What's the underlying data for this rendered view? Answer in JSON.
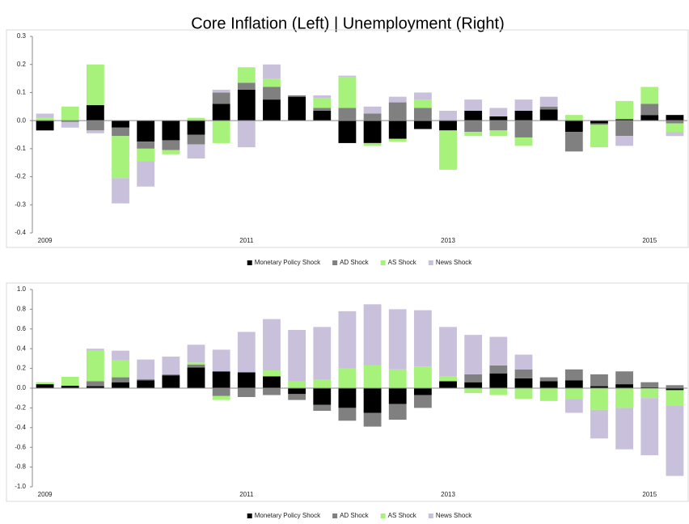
{
  "title": "Core Inflation (Left) | Unemployment (Right)",
  "chart_data": [
    {
      "type": "bar",
      "stacked": true,
      "categories": [
        "2009",
        null,
        null,
        null,
        null,
        null,
        null,
        null,
        "2011",
        null,
        null,
        null,
        null,
        null,
        null,
        null,
        "2013",
        null,
        null,
        null,
        null,
        null,
        null,
        null,
        "2015",
        null
      ],
      "series": [
        {
          "name": "Monetary Policy Shock",
          "color": "#000000",
          "values": [
            -0.035,
            0,
            0.055,
            -0.025,
            -0.075,
            -0.07,
            -0.05,
            0.06,
            0.11,
            0.075,
            0.085,
            0.035,
            -0.08,
            -0.08,
            -0.065,
            -0.03,
            -0.035,
            0.035,
            0.015,
            0.035,
            0.04,
            -0.04,
            -0.01,
            0.005,
            0.02,
            0.02
          ]
        },
        {
          "name": "AD Shock",
          "color": "#808080",
          "values": [
            0,
            -0.005,
            -0.035,
            -0.03,
            -0.025,
            -0.035,
            -0.035,
            0.04,
            0.025,
            0.045,
            0.005,
            0.01,
            0.045,
            0.025,
            0.065,
            0.045,
            0,
            -0.04,
            -0.035,
            -0.06,
            0.01,
            -0.07,
            -0.005,
            -0.055,
            0.04,
            -0.01
          ]
        },
        {
          "name": "AS Shock",
          "color": "#a6f27a",
          "values": [
            0.01,
            0.05,
            0.145,
            -0.15,
            -0.045,
            -0.015,
            0.01,
            -0.08,
            0.055,
            0.03,
            0,
            0.035,
            0.11,
            -0.01,
            -0.01,
            0.03,
            -0.14,
            -0.015,
            -0.02,
            -0.03,
            0,
            0.02,
            -0.08,
            0.065,
            0.06,
            -0.03
          ]
        },
        {
          "name": "News Shock",
          "color": "#c9c0dc",
          "values": [
            0.015,
            -0.02,
            -0.01,
            -0.09,
            -0.09,
            0,
            -0.05,
            0.01,
            -0.095,
            0.05,
            0,
            0.01,
            0.005,
            0.025,
            0.02,
            0.025,
            0.035,
            0.04,
            0.03,
            0.04,
            0.035,
            0,
            0,
            -0.035,
            0,
            -0.015
          ]
        }
      ],
      "ylim": [
        -0.4,
        0.3
      ],
      "yticks": [
        -0.4,
        -0.3,
        -0.2,
        -0.1,
        {
          "value": 0,
          "label": "0.0"
        },
        0.1,
        0.2,
        0.3
      ]
    },
    {
      "type": "bar",
      "stacked": true,
      "categories": [
        "2009",
        null,
        null,
        null,
        null,
        null,
        null,
        null,
        "2011",
        null,
        null,
        null,
        null,
        null,
        null,
        null,
        "2013",
        null,
        null,
        null,
        null,
        null,
        null,
        null,
        "2015",
        null
      ],
      "series": [
        {
          "name": "Monetary Policy Shock",
          "color": "#000000",
          "values": [
            0.04,
            0.025,
            0.02,
            0.06,
            0.08,
            0.13,
            0.21,
            0.17,
            0.16,
            0.12,
            -0.06,
            -0.17,
            -0.2,
            -0.25,
            -0.16,
            -0.07,
            0.07,
            0.06,
            0.15,
            0.1,
            0.07,
            0.08,
            0.02,
            0.04,
            0.01,
            -0.02
          ]
        },
        {
          "name": "AD Shock",
          "color": "#808080",
          "values": [
            0,
            0,
            0.05,
            0.05,
            0.01,
            0.01,
            0.03,
            -0.08,
            -0.09,
            -0.07,
            -0.06,
            -0.06,
            -0.13,
            -0.14,
            -0.16,
            -0.13,
            0,
            0.08,
            0.08,
            0.09,
            0.04,
            0.11,
            0.12,
            0.13,
            0.05,
            0.03
          ]
        },
        {
          "name": "AS Shock",
          "color": "#a6f27a",
          "values": [
            0.02,
            0.09,
            0.31,
            0.17,
            0,
            0,
            0.02,
            -0.04,
            0,
            0.06,
            0.07,
            0.09,
            0.2,
            0.23,
            0.19,
            0.22,
            0.05,
            -0.05,
            -0.07,
            -0.11,
            -0.13,
            -0.11,
            -0.22,
            -0.2,
            -0.1,
            -0.16
          ]
        },
        {
          "name": "News Shock",
          "color": "#c9c0dc",
          "values": [
            0,
            0,
            0.02,
            0.1,
            0.2,
            0.18,
            0.18,
            0.22,
            0.41,
            0.52,
            0.52,
            0.53,
            0.58,
            0.62,
            0.61,
            0.57,
            0.5,
            0.4,
            0.29,
            0.15,
            0,
            -0.14,
            -0.29,
            -0.42,
            -0.58,
            -0.71
          ]
        }
      ],
      "ylim": [
        -1,
        1
      ],
      "yticks": [
        {
          "value": -1,
          "label": "-1.0"
        },
        -0.8,
        -0.6,
        -0.4,
        -0.2,
        {
          "value": 0,
          "label": "0.0"
        },
        0.2,
        0.4,
        0.6,
        0.8,
        {
          "value": 1,
          "label": "1.0"
        }
      ]
    }
  ]
}
